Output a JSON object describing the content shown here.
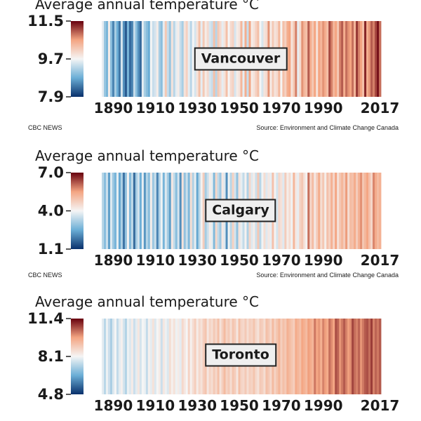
{
  "footer": {
    "credit": "CBC NEWS",
    "source": "Source: Environment and Climate Change Canada"
  },
  "color_scale": {
    "cold": "#08306b",
    "mid_cold": "#6baed6",
    "neutral": "#f5f5f5",
    "mid_warm": "#f4a582",
    "warm": "#67000d"
  },
  "chart_data": [
    {
      "type": "heatmap",
      "title": "Average annual temperature °C",
      "city": "Vancouver",
      "x_start": 1885,
      "x_end": 2017,
      "xticks": [
        "1890",
        "1910",
        "1930",
        "1950",
        "1970",
        "1990",
        "2017"
      ],
      "colorbar_ticks": [
        "11.5",
        "9.7",
        "7.9"
      ],
      "vmin": 7.9,
      "vmax": 11.5,
      "footer": true,
      "values": [
        9.6,
        9.1,
        8.9,
        9.8,
        9.0,
        8.5,
        9.2,
        8.8,
        8.4,
        9.5,
        8.6,
        8.2,
        8.9,
        8.3,
        8.5,
        9.4,
        9.0,
        8.6,
        8.3,
        9.6,
        9.2,
        9.0,
        8.8,
        9.7,
        9.4,
        9.5,
        9.8,
        9.2,
        9.0,
        9.6,
        10.2,
        9.4,
        9.1,
        9.9,
        9.3,
        9.6,
        9.8,
        9.4,
        9.2,
        9.9,
        10.1,
        9.6,
        9.3,
        9.7,
        9.5,
        9.9,
        10.3,
        9.6,
        10.2,
        9.8,
        10.0,
        9.5,
        9.4,
        10.3,
        9.3,
        10.2,
        10.0,
        9.6,
        9.9,
        10.3,
        9.7,
        10.0,
        10.1,
        9.5,
        9.8,
        9.9,
        10.4,
        9.6,
        10.5,
        9.4,
        10.6,
        9.8,
        9.9,
        10.1,
        10.3,
        9.7,
        9.5,
        9.9,
        10.0,
        10.7,
        9.8,
        10.2,
        9.9,
        10.0,
        10.4,
        9.7,
        10.3,
        10.1,
        10.5,
        10.6,
        9.9,
        10.2,
        10.8,
        9.6,
        10.0,
        10.7,
        10.4,
        10.3,
        11.0,
        10.5,
        10.2,
        10.6,
        9.9,
        10.6,
        10.4,
        10.7,
        10.5,
        10.3,
        11.1,
        10.8,
        10.4,
        10.6,
        10.2,
        10.8,
        11.0,
        10.5,
        10.9,
        10.7,
        10.6,
        10.9,
        10.4,
        11.2,
        10.8,
        10.6,
        10.3,
        11.3,
        10.5,
        10.7,
        11.0,
        10.8,
        11.1,
        11.4,
        10.9
      ]
    },
    {
      "type": "heatmap",
      "title": "Average annual temperature °C",
      "city": "Calgary",
      "x_start": 1885,
      "x_end": 2017,
      "xticks": [
        "1890",
        "1910",
        "1930",
        "1950",
        "1970",
        "1990",
        "2017"
      ],
      "colorbar_ticks": [
        "7.0",
        "4.0",
        "1.1"
      ],
      "vmin": 1.1,
      "vmax": 7.0,
      "footer": true,
      "values": [
        3.4,
        2.9,
        3.6,
        2.4,
        3.8,
        3.1,
        2.7,
        3.9,
        2.5,
        3.3,
        1.9,
        3.0,
        4.1,
        2.8,
        3.5,
        1.8,
        3.2,
        3.7,
        2.6,
        3.9,
        2.3,
        3.4,
        2.9,
        4.2,
        3.1,
        3.6,
        2.1,
        3.3,
        4.0,
        2.7,
        3.8,
        3.2,
        2.4,
        4.3,
        3.5,
        2.9,
        3.7,
        2.2,
        4.4,
        3.0,
        3.6,
        2.8,
        4.5,
        3.3,
        3.9,
        2.5,
        3.4,
        4.1,
        4.8,
        3.2,
        3.6,
        4.2,
        3.9,
        2.8,
        4.6,
        3.5,
        3.1,
        4.3,
        3.8,
        2.2,
        4.0,
        3.4,
        4.7,
        3.7,
        3.0,
        4.4,
        3.9,
        3.5,
        4.1,
        3.3,
        4.6,
        3.8,
        4.2,
        3.6,
        4.9,
        3.4,
        4.0,
        4.5,
        3.8,
        4.3,
        3.9,
        5.0,
        4.1,
        3.7,
        4.6,
        4.4,
        3.8,
        4.8,
        4.2,
        4.5,
        4.0,
        5.2,
        4.3,
        3.9,
        4.7,
        4.9,
        4.4,
        4.1,
        6.0,
        4.6,
        5.1,
        4.3,
        4.8,
        5.4,
        4.5,
        4.9,
        4.2,
        5.0,
        4.7,
        5.3,
        4.6,
        5.5,
        4.4,
        4.9,
        5.2,
        4.8,
        5.6,
        4.5,
        5.1,
        5.0,
        5.4,
        4.8,
        5.3,
        5.7,
        4.9,
        5.2,
        5.5,
        5.0,
        4.6,
        5.8,
        5.4,
        5.1,
        5.3
      ]
    },
    {
      "type": "heatmap",
      "title": "Average annual temperature °C",
      "city": "Toronto",
      "x_start": 1885,
      "x_end": 2017,
      "xticks": [
        "1890",
        "1910",
        "1930",
        "1950",
        "1970",
        "1990",
        "2017"
      ],
      "colorbar_ticks": [
        "11.4",
        "8.1",
        "4.8"
      ],
      "vmin": 4.8,
      "vmax": 11.4,
      "footer": false,
      "values": [
        7.9,
        7.4,
        8.0,
        7.6,
        7.2,
        7.8,
        8.1,
        7.5,
        7.9,
        8.2,
        7.7,
        7.3,
        8.0,
        7.8,
        8.3,
        7.6,
        7.9,
        8.4,
        7.7,
        8.1,
        8.0,
        7.5,
        8.2,
        7.9,
        8.5,
        7.8,
        8.1,
        8.3,
        7.6,
        8.4,
        8.0,
        7.8,
        8.6,
        8.2,
        8.5,
        8.0,
        8.3,
        7.9,
        8.7,
        8.4,
        8.1,
        8.8,
        8.2,
        8.6,
        8.9,
        8.3,
        8.7,
        8.5,
        8.9,
        9.1,
        8.4,
        8.8,
        8.6,
        9.0,
        8.7,
        9.2,
        8.5,
        8.9,
        9.3,
        8.8,
        9.0,
        8.6,
        9.1,
        8.9,
        8.4,
        9.2,
        8.8,
        8.7,
        9.0,
        8.6,
        8.9,
        8.8,
        9.1,
        8.7,
        8.5,
        9.0,
        8.9,
        8.6,
        9.2,
        9.0,
        8.7,
        9.3,
        8.8,
        9.1,
        9.4,
        8.9,
        9.2,
        9.0,
        9.5,
        9.3,
        9.1,
        8.9,
        9.6,
        9.4,
        9.2,
        9.7,
        9.5,
        9.3,
        9.8,
        9.6,
        9.4,
        10.2,
        9.7,
        9.9,
        9.5,
        10.1,
        9.8,
        9.6,
        10.3,
        10.0,
        9.7,
        10.6,
        10.4,
        9.9,
        10.2,
        10.5,
        10.1,
        9.8,
        10.0,
        10.7,
        10.3,
        10.1,
        10.4,
        9.9,
        10.2,
        10.5,
        10.6,
        10.3,
        10.8,
        10.1,
        10.4,
        10.2,
        10.5
      ]
    }
  ]
}
